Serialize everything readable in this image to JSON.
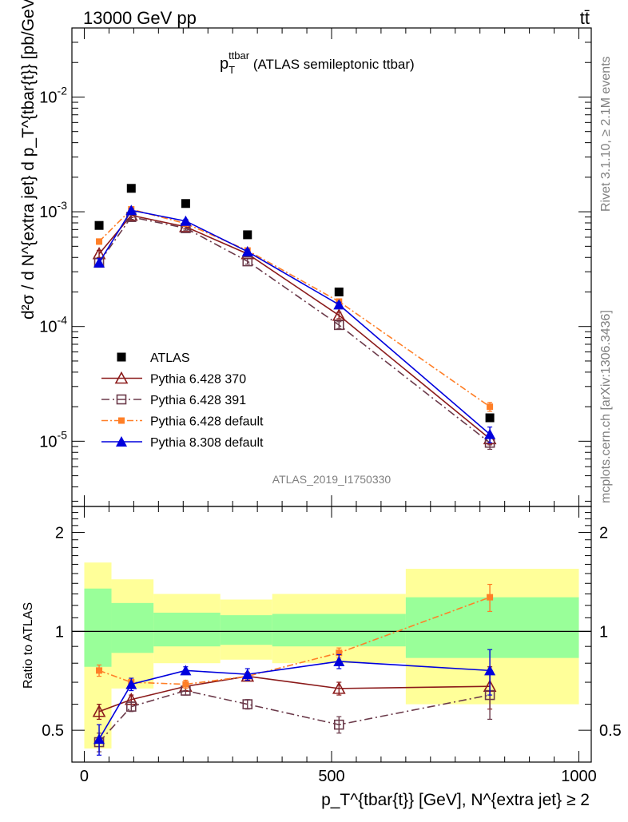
{
  "header": {
    "left": "13000 GeV pp",
    "right": "tt̄"
  },
  "side": {
    "rivet": "Rivet 3.1.10, ≥ 2.1M events",
    "mcplots": "mcplots.cern.ch [arXiv:1306.3436]"
  },
  "plot_title": {
    "main": "p",
    "sub": "T",
    "sup": "ttbar",
    "rest": " (ATLAS semileptonic ttbar)"
  },
  "ylabel_main": "d²σ / d N^{extra jet} d p_T^{tbar{t}} [pb/GeV]",
  "ylabel_ratio": "Ratio to ATLAS",
  "xlabel": "p_T^{tbar{t}} [GeV], N^{extra jet} ≥ 2",
  "analysis_id": "ATLAS_2019_I1750330",
  "main_ticks": {
    "y": [
      "10^{-5}",
      "10^{-4}",
      "10^{-3}",
      "10^{-2}"
    ]
  },
  "ratio_ticks": {
    "y": [
      "0.5",
      "1",
      "2"
    ]
  },
  "x_ticks": [
    "0",
    "500",
    "1000"
  ],
  "legend": [
    "ATLAS",
    "Pythia 6.428 370",
    "Pythia 6.428 391",
    "Pythia 6.428 default",
    "Pythia 8.308 default"
  ],
  "colors": {
    "atlas": "#000000",
    "p370": "#8b1a1a",
    "p391": "#6b3a4a",
    "pdef": "#ff7f27",
    "p8": "#0000dd",
    "band_yellow": "#ffff99",
    "band_green": "#99ff99"
  },
  "chart_data": [
    {
      "type": "scatter",
      "panel": "main",
      "ylog": true,
      "xlim": [
        -25,
        1025
      ],
      "ylim": [
        2.7e-06,
        0.04
      ],
      "x_bins": [
        [
          0,
          55
        ],
        [
          55,
          140
        ],
        [
          140,
          275
        ],
        [
          275,
          380
        ],
        [
          380,
          650
        ],
        [
          650,
          1000
        ]
      ],
      "series": [
        {
          "name": "ATLAS",
          "x": [
            30,
            95,
            205,
            330,
            515,
            820
          ],
          "y": [
            0.00076,
            0.0016,
            0.00118,
            0.00063,
            0.0002,
            1.6e-05
          ]
        },
        {
          "name": "Pythia 6.428 370",
          "x": [
            30,
            95,
            205,
            330,
            515,
            820
          ],
          "y": [
            0.00043,
            0.00093,
            0.00074,
            0.00043,
            0.000125,
            1.05e-05
          ],
          "err": [
            3e-05,
            4e-05,
            3e-05,
            2e-05,
            8e-06,
            1.2e-06
          ]
        },
        {
          "name": "Pythia 6.428 391",
          "x": [
            30,
            95,
            205,
            330,
            515,
            820
          ],
          "y": [
            0.00036,
            0.0009,
            0.00072,
            0.00037,
            0.000103,
            9.7e-06
          ],
          "err": [
            3e-05,
            4e-05,
            3e-05,
            2e-05,
            7e-06,
            1.2e-06
          ]
        },
        {
          "name": "Pythia 6.428 default",
          "x": [
            30,
            95,
            205,
            330,
            515,
            820
          ],
          "y": [
            0.00055,
            0.00105,
            0.00079,
            0.00046,
            0.000165,
            2e-05
          ],
          "err": [
            3e-05,
            4e-05,
            3e-05,
            2e-05,
            8e-06,
            1.8e-06
          ]
        },
        {
          "name": "Pythia 8.308 default",
          "x": [
            30,
            95,
            205,
            330,
            515,
            820
          ],
          "y": [
            0.00036,
            0.00103,
            0.00083,
            0.00045,
            0.000155,
            1.15e-05
          ],
          "err": [
            3e-05,
            4e-05,
            3e-05,
            2e-05,
            8e-06,
            1.8e-06
          ]
        }
      ]
    },
    {
      "type": "scatter",
      "panel": "ratio",
      "ylog": true,
      "xlim": [
        -25,
        1025
      ],
      "ylim": [
        0.4,
        2.4
      ],
      "bands": [
        {
          "x": [
            0,
            55
          ],
          "yellow": [
            0.44,
            1.62
          ],
          "green": [
            0.78,
            1.35
          ]
        },
        {
          "x": [
            55,
            140
          ],
          "yellow": [
            0.67,
            1.44
          ],
          "green": [
            0.86,
            1.22
          ]
        },
        {
          "x": [
            140,
            275
          ],
          "yellow": [
            0.8,
            1.3
          ],
          "green": [
            0.9,
            1.14
          ]
        },
        {
          "x": [
            275,
            380
          ],
          "yellow": [
            0.82,
            1.25
          ],
          "green": [
            0.91,
            1.12
          ]
        },
        {
          "x": [
            380,
            650
          ],
          "yellow": [
            0.8,
            1.3
          ],
          "green": [
            0.9,
            1.13
          ]
        },
        {
          "x": [
            650,
            1000
          ],
          "yellow": [
            0.6,
            1.55
          ],
          "green": [
            0.83,
            1.27
          ]
        }
      ],
      "series": [
        {
          "name": "Pythia 6.428 370",
          "x": [
            30,
            95,
            205,
            330,
            515,
            820
          ],
          "y": [
            0.57,
            0.62,
            0.68,
            0.73,
            0.67,
            0.68
          ],
          "err": [
            0.03,
            0.02,
            0.02,
            0.02,
            0.03,
            0.1
          ]
        },
        {
          "name": "Pythia 6.428 391",
          "x": [
            30,
            95,
            205,
            330,
            515,
            820
          ],
          "y": [
            0.46,
            0.59,
            0.66,
            0.6,
            0.52,
            0.64
          ],
          "err": [
            0.03,
            0.02,
            0.02,
            0.02,
            0.03,
            0.1
          ]
        },
        {
          "name": "Pythia 6.428 default",
          "x": [
            30,
            95,
            205,
            330,
            515,
            820
          ],
          "y": [
            0.76,
            0.7,
            0.69,
            0.73,
            0.86,
            1.27
          ],
          "err": [
            0.03,
            0.02,
            0.02,
            0.02,
            0.03,
            0.12
          ]
        },
        {
          "name": "Pythia 8.308 default",
          "x": [
            30,
            95,
            205,
            330,
            515,
            820
          ],
          "y": [
            0.47,
            0.69,
            0.76,
            0.74,
            0.81,
            0.76
          ],
          "err": [
            0.05,
            0.03,
            0.02,
            0.03,
            0.04,
            0.12
          ]
        }
      ]
    }
  ]
}
